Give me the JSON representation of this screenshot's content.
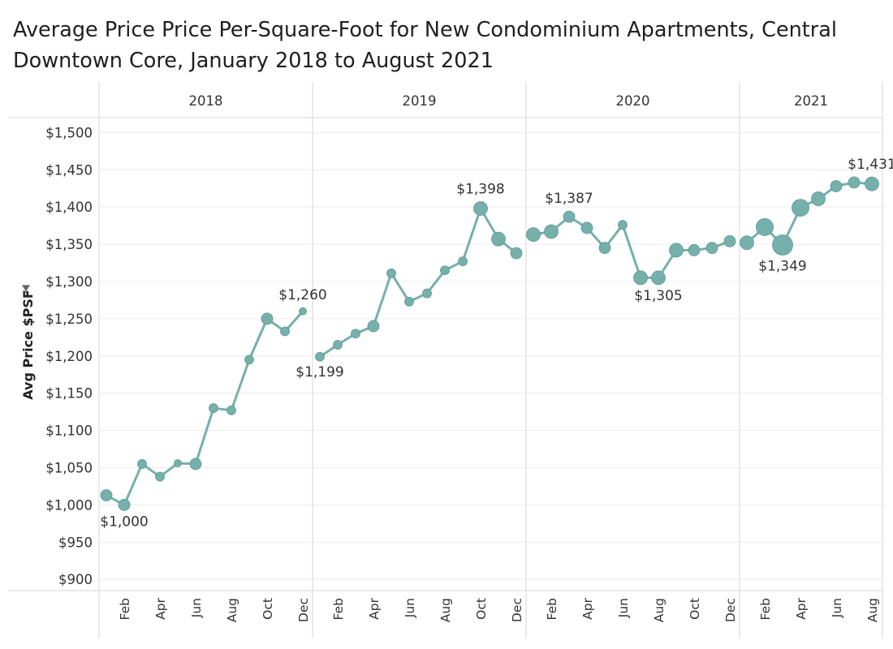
{
  "chart_data": {
    "type": "line",
    "title": "Average Price Price Per-Square-Foot for New Condominium Apartments, Central Downtown Core, January 2018 to August 2021",
    "ylabel": "Avg Price $PSF",
    "ylim": [
      885,
      1520
    ],
    "yticks": [
      900,
      950,
      1000,
      1050,
      1100,
      1150,
      1200,
      1250,
      1300,
      1350,
      1400,
      1450,
      1500
    ],
    "ytick_labels": [
      "$900",
      "$950",
      "$1,000",
      "$1,050",
      "$1,100",
      "$1,150",
      "$1,200",
      "$1,250",
      "$1,300",
      "$1,350",
      "$1,400",
      "$1,450",
      "$1,500"
    ],
    "grid": true,
    "line_color": "#76b0ab",
    "years": [
      {
        "label": "2018",
        "months": [
          "Jan",
          "Feb",
          "Mar",
          "Apr",
          "May",
          "Jun",
          "Jul",
          "Aug",
          "Sep",
          "Oct",
          "Nov",
          "Dec"
        ],
        "ticks": [
          "Feb",
          "Apr",
          "Jun",
          "Aug",
          "Oct",
          "Dec"
        ],
        "values": [
          1013,
          1000,
          1055,
          1038,
          1056,
          1055,
          1130,
          1127,
          1195,
          1250,
          1233,
          1260
        ],
        "sizes": [
          2,
          2,
          1,
          1,
          0,
          2,
          1,
          1,
          1,
          2,
          1,
          0
        ]
      },
      {
        "label": "2019",
        "months": [
          "Jan",
          "Feb",
          "Mar",
          "Apr",
          "May",
          "Jun",
          "Jul",
          "Aug",
          "Sep",
          "Oct",
          "Nov",
          "Dec"
        ],
        "ticks": [
          "Feb",
          "Apr",
          "Jun",
          "Aug",
          "Oct",
          "Dec"
        ],
        "values": [
          1199,
          1215,
          1230,
          1240,
          1311,
          1273,
          1284,
          1315,
          1327,
          1398,
          1357,
          1338
        ],
        "sizes": [
          1,
          1,
          1,
          2,
          1,
          1,
          1,
          1,
          1,
          3,
          3,
          2
        ]
      },
      {
        "label": "2020",
        "months": [
          "Jan",
          "Feb",
          "Mar",
          "Apr",
          "May",
          "Jun",
          "Jul",
          "Aug",
          "Sep",
          "Oct",
          "Nov",
          "Dec"
        ],
        "ticks": [
          "Feb",
          "Apr",
          "Jun",
          "Aug",
          "Oct",
          "Dec"
        ],
        "values": [
          1363,
          1367,
          1387,
          1372,
          1345,
          1376,
          1305,
          1305,
          1342,
          1342,
          1345,
          1354
        ],
        "sizes": [
          3,
          3,
          2,
          2,
          2,
          1,
          3,
          3,
          3,
          2,
          2,
          2
        ]
      },
      {
        "label": "2021",
        "months": [
          "Jan",
          "Feb",
          "Mar",
          "Apr",
          "May",
          "Jun",
          "Jul",
          "Aug"
        ],
        "ticks": [
          "Feb",
          "Apr",
          "Jun",
          "Aug"
        ],
        "values": [
          1352,
          1373,
          1349,
          1399,
          1411,
          1428,
          1433,
          1431
        ],
        "sizes": [
          3,
          4,
          5,
          4,
          3,
          2,
          2,
          3
        ]
      }
    ],
    "annotations": [
      {
        "year": 0,
        "month": 1,
        "text": "$1,000",
        "position": "below"
      },
      {
        "year": 0,
        "month": 11,
        "text": "$1,260",
        "position": "above"
      },
      {
        "year": 1,
        "month": 0,
        "text": "$1,199",
        "position": "below"
      },
      {
        "year": 1,
        "month": 9,
        "text": "$1,398",
        "position": "above"
      },
      {
        "year": 2,
        "month": 2,
        "text": "$1,387",
        "position": "above"
      },
      {
        "year": 2,
        "month": 7,
        "text": "$1,305",
        "position": "below"
      },
      {
        "year": 3,
        "month": 2,
        "text": "$1,349",
        "position": "below"
      },
      {
        "year": 3,
        "month": 7,
        "text": "$1,431",
        "position": "above"
      }
    ]
  }
}
